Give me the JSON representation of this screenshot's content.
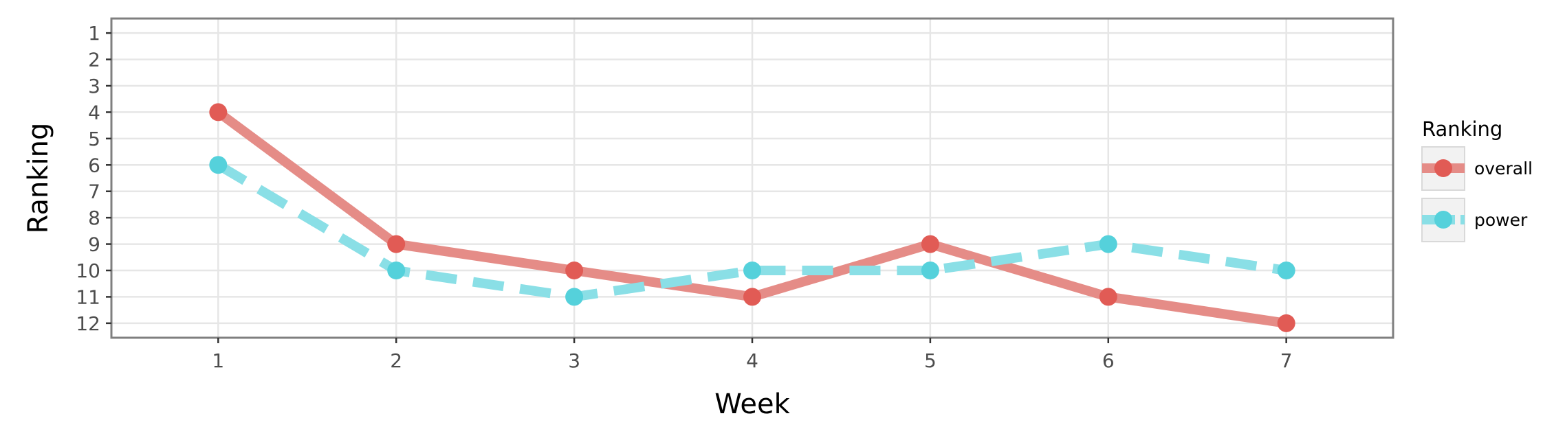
{
  "chart_data": {
    "type": "line",
    "x": [
      1,
      2,
      3,
      4,
      5,
      6,
      7
    ],
    "xlabel": "Week",
    "ylabel": "Ranking",
    "xticks": [
      "1",
      "2",
      "3",
      "4",
      "5",
      "6",
      "7"
    ],
    "yticks": [
      "1",
      "2",
      "3",
      "4",
      "5",
      "6",
      "7",
      "8",
      "9",
      "10",
      "11",
      "12"
    ],
    "xlim": [
      0.4,
      7.6
    ],
    "ylim": [
      12.55,
      0.45
    ],
    "y_reversed": true,
    "grid": true,
    "legend": {
      "title": "Ranking",
      "placement": "right"
    },
    "series": [
      {
        "name": "overall",
        "values": [
          4,
          9,
          10,
          11,
          9,
          11,
          12
        ],
        "color": "#e15b55",
        "line_color": "#e58c87",
        "dash": "solid"
      },
      {
        "name": "power",
        "values": [
          6,
          10,
          11,
          10,
          10,
          9,
          10
        ],
        "color": "#55d1db",
        "line_color": "#8adfe6",
        "dash": "dashed"
      }
    ]
  }
}
